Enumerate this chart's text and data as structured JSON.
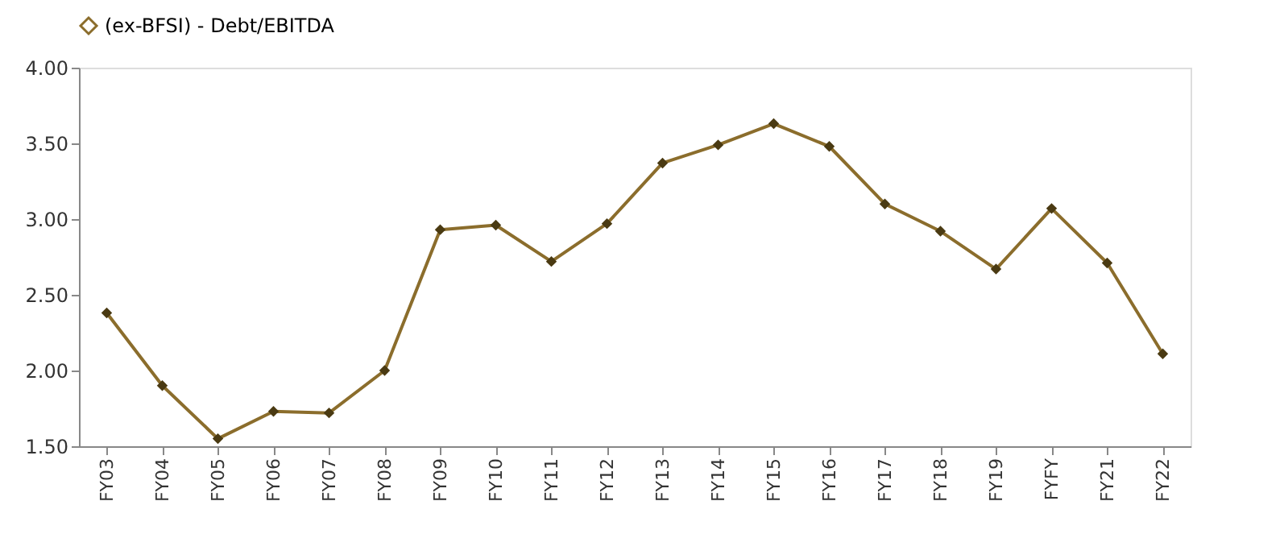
{
  "chart_data": {
    "type": "line",
    "categories": [
      "FY03",
      "FY04",
      "FY05",
      "FY06",
      "FY07",
      "FY08",
      "FY09",
      "FY10",
      "FY11",
      "FY12",
      "FY13",
      "FY14",
      "FY15",
      "FY16",
      "FY17",
      "FY18",
      "FY19",
      "FYFY",
      "FY21",
      "FY22"
    ],
    "series": [
      {
        "name": "(ex-BFSI) - Debt/EBITDA",
        "color": "#8b6d2c",
        "values": [
          2.38,
          1.9,
          1.55,
          1.73,
          1.72,
          2.0,
          2.93,
          2.96,
          2.72,
          2.97,
          3.37,
          3.49,
          3.63,
          3.48,
          3.1,
          2.92,
          2.67,
          3.07,
          2.71,
          2.11
        ]
      }
    ],
    "ylim": [
      1.5,
      4.0
    ],
    "yticks": [
      {
        "value": 1.5,
        "label": "1.50"
      },
      {
        "value": 2.0,
        "label": "2.00"
      },
      {
        "value": 2.5,
        "label": "2.50"
      },
      {
        "value": 3.0,
        "label": "3.00"
      },
      {
        "value": 3.5,
        "label": "3.50"
      },
      {
        "value": 4.0,
        "label": "4.00"
      }
    ],
    "grid": false,
    "legend": "top",
    "marker": "diamond",
    "line_style": "solid"
  }
}
